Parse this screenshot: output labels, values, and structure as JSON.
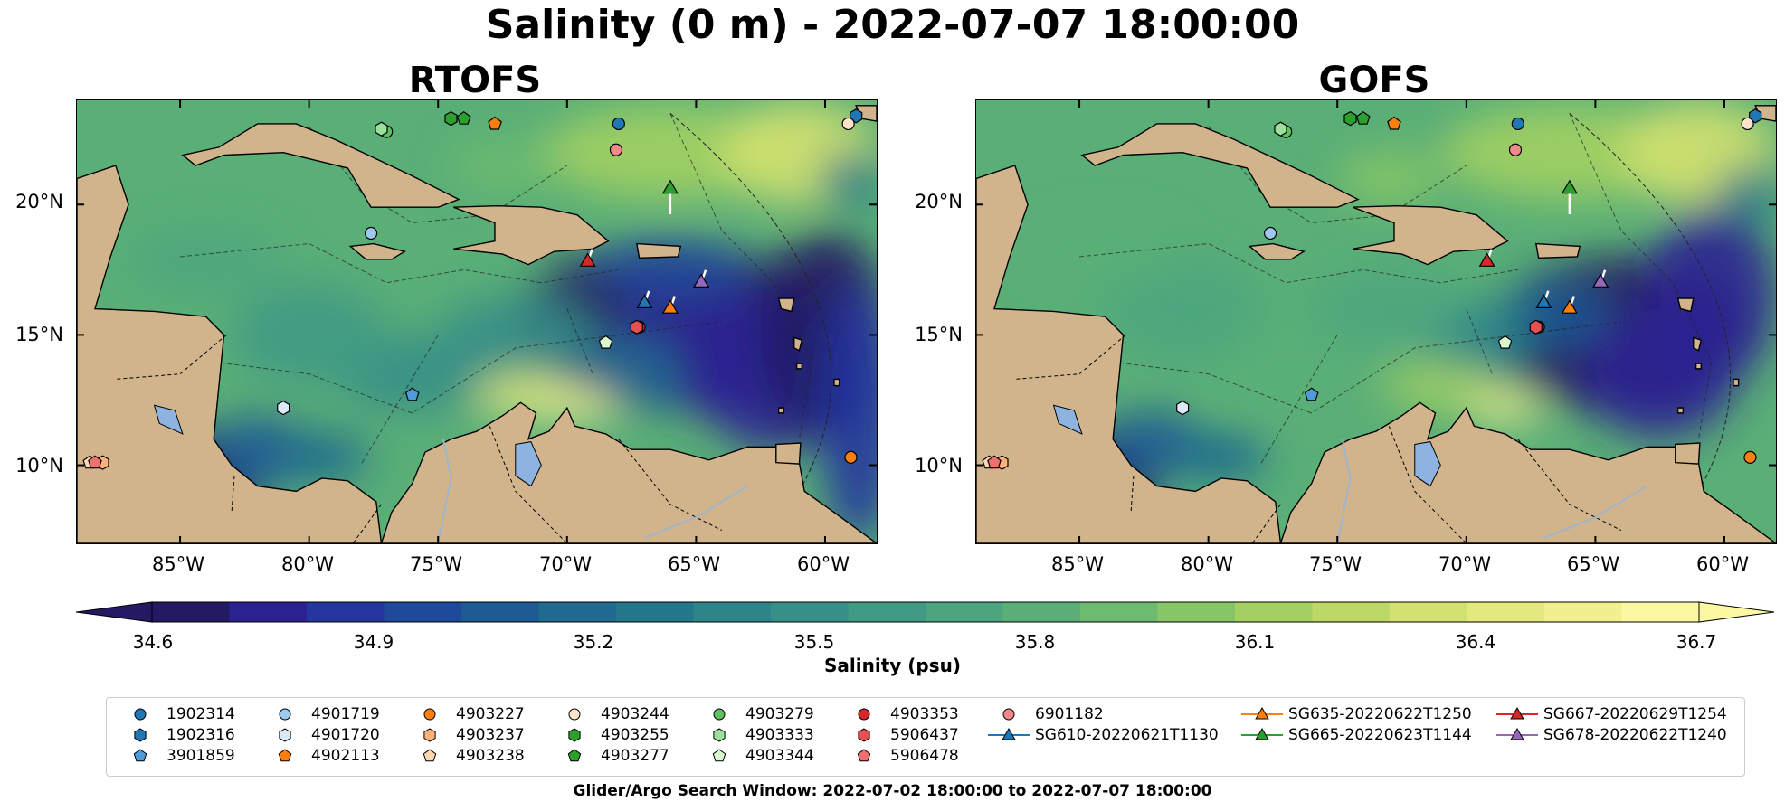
{
  "title": "Salinity (0 m) - 2022-07-07 18:00:00",
  "panels": [
    {
      "title": "RTOFS"
    },
    {
      "title": "GOFS"
    }
  ],
  "lat_labels": [
    "20°N",
    "15°N",
    "10°N"
  ],
  "lat_values": [
    20,
    15,
    10
  ],
  "lon_labels": [
    "85°W",
    "80°W",
    "75°W",
    "70°W",
    "65°W",
    "60°W"
  ],
  "lon_values": [
    -85,
    -80,
    -75,
    -70,
    -65,
    -60
  ],
  "map_extent": {
    "lon": [
      -89,
      -58
    ],
    "lat": [
      7,
      24
    ]
  },
  "colorbar": {
    "label": "Salinity (psu)",
    "ticks": [
      "34.6",
      "34.9",
      "35.2",
      "35.5",
      "35.8",
      "36.1",
      "36.4",
      "36.7"
    ],
    "tick_values": [
      34.6,
      34.9,
      35.2,
      35.5,
      35.8,
      36.1,
      36.4,
      36.7
    ],
    "range": [
      34.6,
      36.7
    ],
    "colors": [
      "#231a63",
      "#2b2291",
      "#25359e",
      "#1f4a9a",
      "#1e5a93",
      "#1f6a8e",
      "#25788b",
      "#2d858a",
      "#378f87",
      "#419a84",
      "#4ca57e",
      "#5aaf77",
      "#6dbb6e",
      "#86c665",
      "#a2d062",
      "#bcd966",
      "#d3e170",
      "#e4e97e",
      "#f2f08e",
      "#fbf7a2"
    ]
  },
  "colors": {
    "land": "#d2b48c",
    "lakes": "#8fb3e0",
    "rivers": "#9fb5c9"
  },
  "glider_markers": [
    {
      "name": "SG610-20220621T1130",
      "lon": -67.0,
      "lat": 16.2,
      "color": "#1f77b4"
    },
    {
      "name": "SG635-20220622T1250",
      "lon": -66.0,
      "lat": 16.0,
      "color": "#ff7f0e"
    },
    {
      "name": "SG665-20220623T1144",
      "lon": -66.0,
      "lat": 20.6,
      "color": "#2ca02c"
    },
    {
      "name": "SG667-20220629T1254",
      "lon": -69.2,
      "lat": 17.8,
      "color": "#d62728"
    },
    {
      "name": "SG678-20220622T1240",
      "lon": -64.8,
      "lat": 17.0,
      "color": "#9467bd"
    }
  ],
  "argo_markers": [
    {
      "name": "1902314",
      "lon": -68.0,
      "lat": 23.1,
      "color": "#1f77b4",
      "shape": "circle"
    },
    {
      "name": "1902316",
      "lon": -58.8,
      "lat": 23.4,
      "color": "#1f77b4",
      "shape": "hexagon"
    },
    {
      "name": "3901859",
      "lon": -76.0,
      "lat": 12.7,
      "color": "#4f9bd9",
      "shape": "pentagon"
    },
    {
      "name": "4901719",
      "lon": -77.6,
      "lat": 18.9,
      "color": "#9ec9ee",
      "shape": "circle"
    },
    {
      "name": "4901720",
      "lon": -81.0,
      "lat": 12.2,
      "color": "#dbe9f7",
      "shape": "hexagon"
    },
    {
      "name": "4902113",
      "lon": -72.8,
      "lat": 23.1,
      "color": "#ff7f0e",
      "shape": "pentagon"
    },
    {
      "name": "4903227",
      "lon": -59.0,
      "lat": 10.3,
      "color": "#ff7f0e",
      "shape": "circle"
    },
    {
      "name": "4903237",
      "lon": -88.0,
      "lat": 10.1,
      "color": "#fdb27a",
      "shape": "hexagon"
    },
    {
      "name": "4903238",
      "lon": -88.5,
      "lat": 10.1,
      "color": "#fdd5b0",
      "shape": "pentagon"
    },
    {
      "name": "4903244",
      "lon": -59.1,
      "lat": 23.1,
      "color": "#fde4cc",
      "shape": "circle"
    },
    {
      "name": "4903255",
      "lon": -74.5,
      "lat": 23.3,
      "color": "#2ca02c",
      "shape": "hexagon"
    },
    {
      "name": "4903277",
      "lon": -74.0,
      "lat": 23.3,
      "color": "#2ca02c",
      "shape": "pentagon"
    },
    {
      "name": "4903279",
      "lon": -77.0,
      "lat": 22.8,
      "color": "#60c060",
      "shape": "circle"
    },
    {
      "name": "4903333",
      "lon": -77.2,
      "lat": 22.9,
      "color": "#9be09b",
      "shape": "hexagon"
    },
    {
      "name": "4903344",
      "lon": -68.5,
      "lat": 14.7,
      "color": "#d9f7d0",
      "shape": "pentagon"
    },
    {
      "name": "4903353",
      "lon": -67.2,
      "lat": 15.3,
      "color": "#d62728",
      "shape": "circle"
    },
    {
      "name": "5906437",
      "lon": -67.3,
      "lat": 15.3,
      "color": "#e65050",
      "shape": "hexagon"
    },
    {
      "name": "5906478",
      "lon": -88.3,
      "lat": 10.1,
      "color": "#f07070",
      "shape": "pentagon"
    },
    {
      "name": "6901182",
      "lon": -68.1,
      "lat": 22.1,
      "color": "#f08a8a",
      "shape": "circle"
    }
  ],
  "legend": {
    "items": [
      {
        "label": "1902314",
        "color": "#1f77b4",
        "shape": "circle"
      },
      {
        "label": "1902316",
        "color": "#1f77b4",
        "shape": "hexagon"
      },
      {
        "label": "3901859",
        "color": "#4f9bd9",
        "shape": "pentagon"
      },
      {
        "label": "4901719",
        "color": "#9ec9ee",
        "shape": "circle"
      },
      {
        "label": "4901720",
        "color": "#dbe9f7",
        "shape": "hexagon"
      },
      {
        "label": "4902113",
        "color": "#ff7f0e",
        "shape": "pentagon"
      },
      {
        "label": "4903227",
        "color": "#ff7f0e",
        "shape": "circle"
      },
      {
        "label": "4903237",
        "color": "#fdb27a",
        "shape": "hexagon"
      },
      {
        "label": "4903238",
        "color": "#fdd5b0",
        "shape": "pentagon"
      },
      {
        "label": "4903244",
        "color": "#fde4cc",
        "shape": "circle"
      },
      {
        "label": "4903255",
        "color": "#2ca02c",
        "shape": "hexagon"
      },
      {
        "label": "4903277",
        "color": "#2ca02c",
        "shape": "pentagon"
      },
      {
        "label": "4903279",
        "color": "#60c060",
        "shape": "circle"
      },
      {
        "label": "4903333",
        "color": "#9be09b",
        "shape": "hexagon"
      },
      {
        "label": "4903344",
        "color": "#d9f7d0",
        "shape": "pentagon"
      },
      {
        "label": "4903353",
        "color": "#d62728",
        "shape": "circle"
      },
      {
        "label": "5906437",
        "color": "#e65050",
        "shape": "hexagon"
      },
      {
        "label": "5906478",
        "color": "#f07070",
        "shape": "pentagon"
      },
      {
        "label": "6901182",
        "color": "#f08a8a",
        "shape": "circle"
      },
      {
        "label": "SG610-20220621T1130",
        "color": "#1f77b4",
        "shape": "triangle-line"
      },
      {
        "label": "SG635-20220622T1250",
        "color": "#ff7f0e",
        "shape": "triangle-line"
      },
      {
        "label": "SG665-20220623T1144",
        "color": "#2ca02c",
        "shape": "triangle-line"
      },
      {
        "label": "SG667-20220629T1254",
        "color": "#d62728",
        "shape": "triangle-line"
      },
      {
        "label": "SG678-20220622T1240",
        "color": "#9467bd",
        "shape": "triangle-line"
      }
    ]
  },
  "footer": "Glider/Argo Search Window: 2022-07-02 18:00:00 to 2022-07-07 18:00:00"
}
